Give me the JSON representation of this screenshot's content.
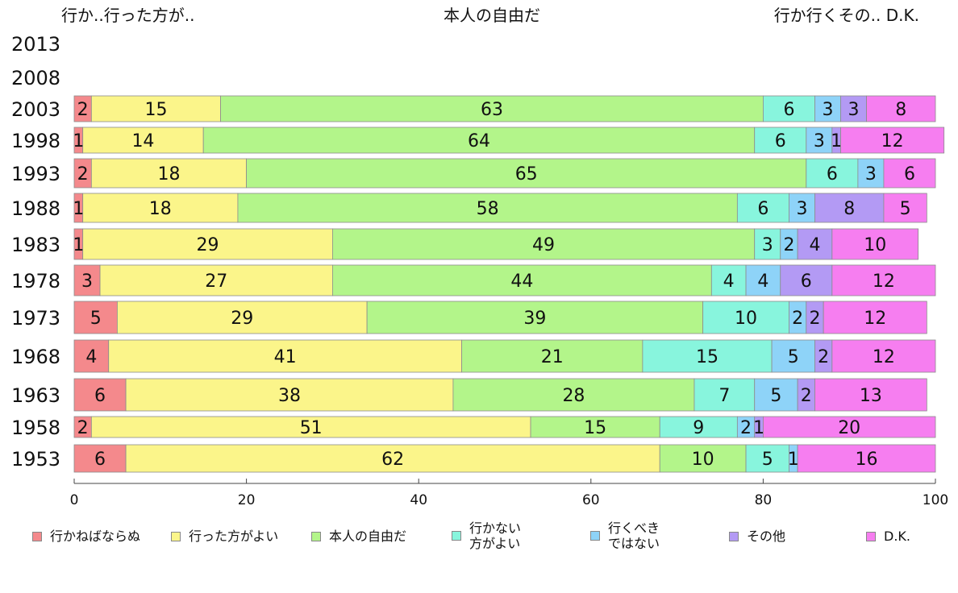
{
  "chart_data": {
    "type": "bar",
    "orientation": "horizontal",
    "stacked": true,
    "header_labels": [
      "行か..行った方が..",
      "本人の自由だ",
      "行か行くその.. D.K."
    ],
    "categories": [
      "2013",
      "2008",
      "2003",
      "1998",
      "1993",
      "1988",
      "1983",
      "1978",
      "1973",
      "1968",
      "1963",
      "1958",
      "1953"
    ],
    "series": [
      {
        "name": "行かねばならぬ",
        "color": "#f4898c",
        "values": [
          null,
          null,
          2,
          1,
          2,
          1,
          1,
          3,
          5,
          4,
          6,
          2,
          6
        ]
      },
      {
        "name": "行った方がよい",
        "color": "#fbf58a",
        "values": [
          null,
          null,
          15,
          14,
          18,
          18,
          29,
          27,
          29,
          41,
          38,
          51,
          62
        ]
      },
      {
        "name": "本人の自由だ",
        "color": "#b3f58a",
        "values": [
          null,
          null,
          63,
          64,
          65,
          58,
          49,
          44,
          39,
          21,
          28,
          15,
          10
        ]
      },
      {
        "name": "行かない\n方がよい",
        "color": "#88f5dd",
        "values": [
          null,
          null,
          6,
          6,
          6,
          6,
          3,
          4,
          10,
          15,
          7,
          9,
          5
        ]
      },
      {
        "name": "行くべき\nではない",
        "color": "#8ed3f8",
        "values": [
          null,
          null,
          3,
          3,
          3,
          3,
          2,
          4,
          2,
          5,
          5,
          2,
          1
        ]
      },
      {
        "name": "その他",
        "color": "#b39af4",
        "values": [
          null,
          null,
          3,
          1,
          0,
          8,
          4,
          6,
          2,
          2,
          2,
          1,
          0
        ]
      },
      {
        "name": "D.K.",
        "color": "#f67ef0",
        "values": [
          null,
          null,
          8,
          12,
          6,
          5,
          10,
          12,
          12,
          12,
          13,
          20,
          16
        ]
      }
    ],
    "xlim": [
      0,
      100
    ],
    "xticks": [
      0,
      20,
      40,
      60,
      80,
      100
    ],
    "legend_position": "bottom",
    "grid": false
  }
}
